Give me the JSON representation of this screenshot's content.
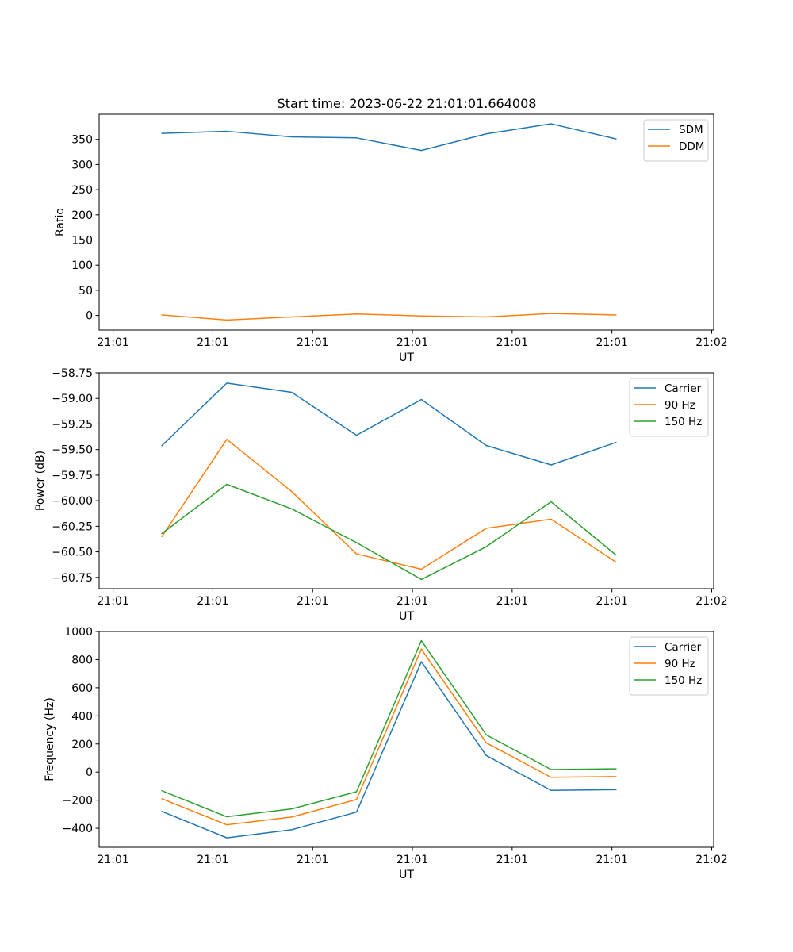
{
  "figure_title": "Start time: 2023-06-22 21:01:01.664008",
  "chart_data": [
    {
      "type": "line",
      "xlabel": "UT",
      "ylabel": "Ratio",
      "x_tick_labels": [
        "21:01",
        "21:01",
        "21:01",
        "21:01",
        "21:01",
        "21:01",
        "21:02"
      ],
      "x_ticks": [
        0,
        1,
        2,
        3,
        4,
        5,
        6
      ],
      "xlim": [
        -0.14,
        6.02
      ],
      "x": [
        0.49,
        1.14,
        1.79,
        2.44,
        3.09,
        3.74,
        4.39,
        5.04
      ],
      "y_ticks": [
        0,
        50,
        100,
        150,
        200,
        250,
        300,
        350
      ],
      "ylim": [
        -29,
        400
      ],
      "legend_position": "top-right",
      "series": [
        {
          "name": "SDM",
          "color": "#1f77b4",
          "values": [
            362,
            366,
            355,
            353,
            328,
            361,
            381,
            351
          ]
        },
        {
          "name": "DDM",
          "color": "#ff7f0e",
          "values": [
            1,
            -9,
            -3,
            3,
            -1,
            -3,
            4,
            1
          ]
        }
      ]
    },
    {
      "type": "line",
      "xlabel": "UT",
      "ylabel": "Power (dB)",
      "x_tick_labels": [
        "21:01",
        "21:01",
        "21:01",
        "21:01",
        "21:01",
        "21:01",
        "21:02"
      ],
      "x_ticks": [
        0,
        1,
        2,
        3,
        4,
        5,
        6
      ],
      "xlim": [
        -0.14,
        6.02
      ],
      "x": [
        0.49,
        1.14,
        1.79,
        2.44,
        3.09,
        3.74,
        4.39,
        5.04
      ],
      "y_ticks": [
        -58.75,
        -59.0,
        -59.25,
        -59.5,
        -59.75,
        -60.0,
        -60.25,
        -60.5,
        -60.75
      ],
      "y_tick_labels": [
        "−58.75",
        "−59.00",
        "−59.25",
        "−59.50",
        "−59.75",
        "−60.00",
        "−60.25",
        "−60.50",
        "−60.75"
      ],
      "ylim": [
        -60.86,
        -58.75
      ],
      "legend_position": "top-right",
      "series": [
        {
          "name": "Carrier",
          "color": "#1f77b4",
          "values": [
            -59.46,
            -58.85,
            -58.94,
            -59.36,
            -59.01,
            -59.46,
            -59.65,
            -59.43
          ]
        },
        {
          "name": "90 Hz",
          "color": "#ff7f0e",
          "values": [
            -60.35,
            -59.4,
            -59.91,
            -60.52,
            -60.67,
            -60.27,
            -60.18,
            -60.6
          ]
        },
        {
          "name": "150 Hz",
          "color": "#2ca02c",
          "values": [
            -60.32,
            -59.84,
            -60.08,
            -60.41,
            -60.77,
            -60.45,
            -60.01,
            -60.53
          ]
        }
      ]
    },
    {
      "type": "line",
      "xlabel": "UT",
      "ylabel": "Frequency (Hz)",
      "x_tick_labels": [
        "21:01",
        "21:01",
        "21:01",
        "21:01",
        "21:01",
        "21:01",
        "21:02"
      ],
      "x_ticks": [
        0,
        1,
        2,
        3,
        4,
        5,
        6
      ],
      "xlim": [
        -0.14,
        6.02
      ],
      "x": [
        0.49,
        1.14,
        1.79,
        2.44,
        3.09,
        3.74,
        4.39,
        5.04
      ],
      "y_ticks": [
        -400,
        -200,
        0,
        200,
        400,
        600,
        800,
        1000
      ],
      "y_tick_labels": [
        "−400",
        "−200",
        "0",
        "200",
        "400",
        "600",
        "800",
        "1000"
      ],
      "ylim": [
        -535,
        1000
      ],
      "legend_position": "top-right",
      "series": [
        {
          "name": "Carrier",
          "color": "#1f77b4",
          "values": [
            -280,
            -468,
            -410,
            -285,
            785,
            118,
            -130,
            -125
          ]
        },
        {
          "name": "90 Hz",
          "color": "#ff7f0e",
          "values": [
            -190,
            -375,
            -320,
            -195,
            875,
            208,
            -37,
            -32
          ]
        },
        {
          "name": "150 Hz",
          "color": "#2ca02c",
          "values": [
            -133,
            -318,
            -262,
            -140,
            935,
            265,
            18,
            23
          ]
        }
      ]
    }
  ]
}
